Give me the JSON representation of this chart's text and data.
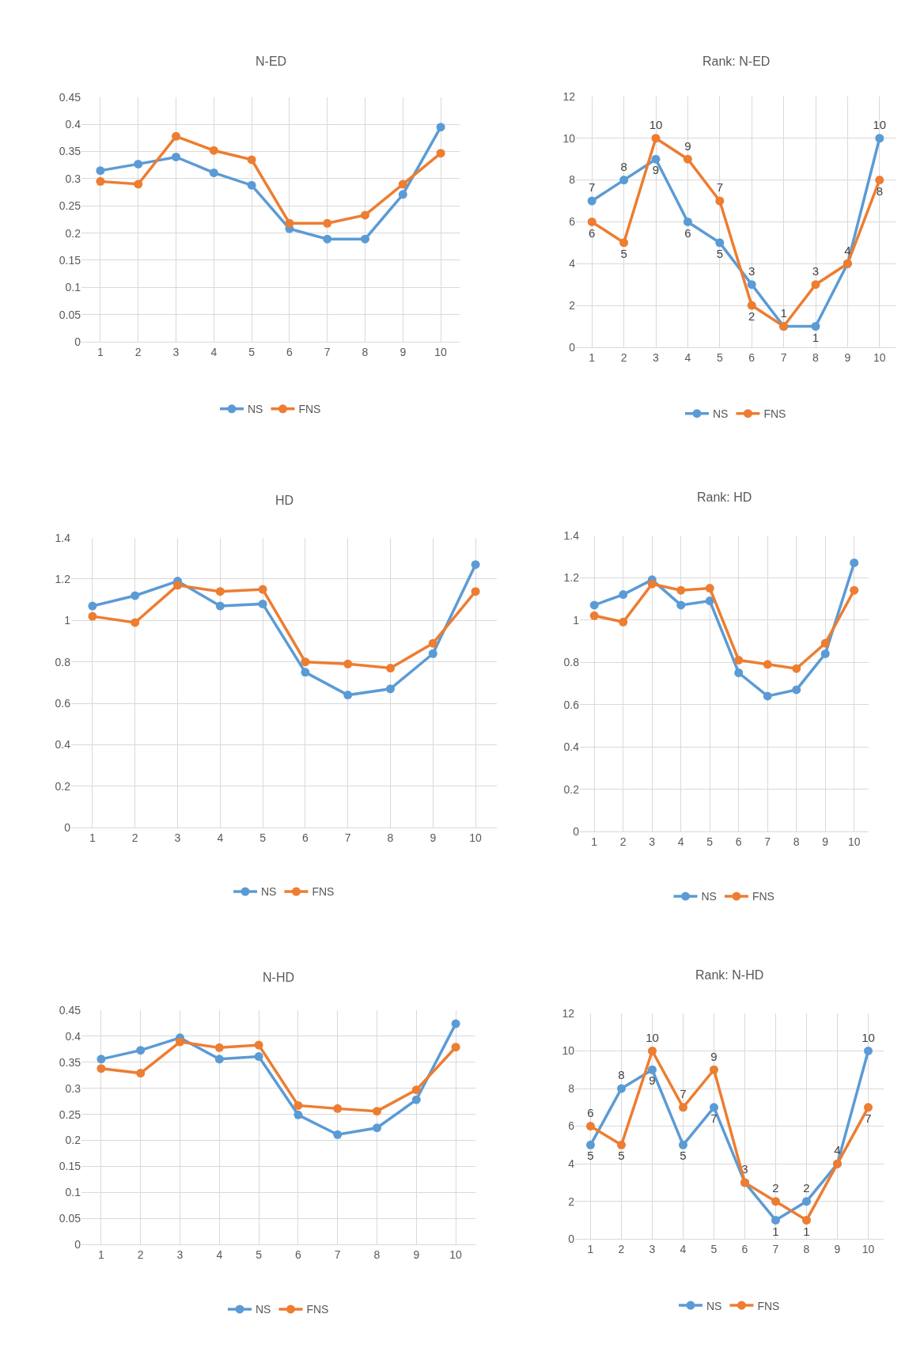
{
  "chart_data": [
    {
      "type": "line",
      "title": "N-ED",
      "categories": [
        "1",
        "2",
        "3",
        "4",
        "5",
        "6",
        "7",
        "8",
        "9",
        "10"
      ],
      "ylim": [
        0,
        0.45
      ],
      "yticks": [
        0,
        0.05,
        0.1,
        0.15,
        0.2,
        0.25,
        0.3,
        0.35,
        0.4,
        0.45
      ],
      "grid": true,
      "legend": "bottom",
      "marker": "circle",
      "series": [
        {
          "name": "NS",
          "color": "#5b9bd5",
          "values": [
            0.315,
            0.327,
            0.34,
            0.311,
            0.288,
            0.208,
            0.189,
            0.189,
            0.271,
            0.395
          ]
        },
        {
          "name": "FNS",
          "color": "#ed7d31",
          "values": [
            0.295,
            0.29,
            0.378,
            0.352,
            0.335,
            0.218,
            0.218,
            0.233,
            0.29,
            0.347
          ]
        }
      ]
    },
    {
      "type": "line",
      "title": "Rank: N-ED",
      "categories": [
        "1",
        "2",
        "3",
        "4",
        "5",
        "6",
        "7",
        "8",
        "9",
        "10"
      ],
      "ylim": [
        0,
        12
      ],
      "yticks": [
        0,
        2,
        4,
        6,
        8,
        10,
        12
      ],
      "grid": true,
      "legend": "bottom",
      "marker": "circle",
      "series": [
        {
          "name": "NS",
          "color": "#5b9bd5",
          "values": [
            7,
            8,
            9,
            6,
            5,
            3,
            1,
            1,
            4,
            10
          ],
          "value_labels": [
            "7",
            "8",
            "9",
            "6",
            "5",
            "3",
            "1",
            "1",
            "4",
            "10"
          ]
        },
        {
          "name": "FNS",
          "color": "#ed7d31",
          "values": [
            6,
            5,
            10,
            9,
            7,
            2,
            1,
            3,
            4,
            8
          ],
          "value_labels": [
            "6",
            "5",
            "10",
            "9",
            "7",
            "2",
            null,
            "3",
            null,
            "8"
          ]
        }
      ]
    },
    {
      "type": "line",
      "title": "HD",
      "categories": [
        "1",
        "2",
        "3",
        "4",
        "5",
        "6",
        "7",
        "8",
        "9",
        "10"
      ],
      "ylim": [
        0,
        1.4
      ],
      "yticks": [
        0,
        0.2,
        0.4,
        0.6,
        0.8,
        1,
        1.2,
        1.4
      ],
      "grid": true,
      "legend": "bottom",
      "marker": "circle",
      "series": [
        {
          "name": "NS",
          "color": "#5b9bd5",
          "values": [
            1.07,
            1.12,
            1.19,
            1.07,
            1.08,
            0.75,
            0.64,
            0.67,
            0.84,
            1.27
          ]
        },
        {
          "name": "FNS",
          "color": "#ed7d31",
          "values": [
            1.02,
            0.99,
            1.17,
            1.14,
            1.15,
            0.8,
            0.79,
            0.77,
            0.89,
            1.14
          ]
        }
      ]
    },
    {
      "type": "line",
      "title": "Rank: HD",
      "categories": [
        "1",
        "2",
        "3",
        "4",
        "5",
        "6",
        "7",
        "8",
        "9",
        "10"
      ],
      "ylim": [
        0,
        1.4
      ],
      "yticks": [
        0,
        0.2,
        0.4,
        0.6,
        0.8,
        1,
        1.2,
        1.4
      ],
      "grid": true,
      "legend": "bottom",
      "marker": "circle",
      "series": [
        {
          "name": "NS",
          "color": "#5b9bd5",
          "values": [
            1.07,
            1.12,
            1.19,
            1.07,
            1.09,
            0.75,
            0.64,
            0.67,
            0.84,
            1.27
          ]
        },
        {
          "name": "FNS",
          "color": "#ed7d31",
          "values": [
            1.02,
            0.99,
            1.17,
            1.14,
            1.15,
            0.81,
            0.79,
            0.77,
            0.89,
            1.14
          ]
        }
      ]
    },
    {
      "type": "line",
      "title": "N-HD",
      "categories": [
        "1",
        "2",
        "3",
        "4",
        "5",
        "6",
        "7",
        "8",
        "9",
        "10"
      ],
      "ylim": [
        0,
        0.45
      ],
      "yticks": [
        0,
        0.05,
        0.1,
        0.15,
        0.2,
        0.25,
        0.3,
        0.35,
        0.4,
        0.45
      ],
      "grid": true,
      "legend": "bottom",
      "marker": "circle",
      "series": [
        {
          "name": "NS",
          "color": "#5b9bd5",
          "values": [
            0.356,
            0.373,
            0.397,
            0.356,
            0.361,
            0.249,
            0.211,
            0.224,
            0.278,
            0.424
          ]
        },
        {
          "name": "FNS",
          "color": "#ed7d31",
          "values": [
            0.338,
            0.329,
            0.389,
            0.378,
            0.383,
            0.267,
            0.261,
            0.256,
            0.297,
            0.379
          ]
        }
      ]
    },
    {
      "type": "line",
      "title": "Rank: N-HD",
      "categories": [
        "1",
        "2",
        "3",
        "4",
        "5",
        "6",
        "7",
        "8",
        "9",
        "10"
      ],
      "ylim": [
        0,
        12
      ],
      "yticks": [
        0,
        2,
        4,
        6,
        8,
        10,
        12
      ],
      "grid": true,
      "legend": "bottom",
      "marker": "circle",
      "series": [
        {
          "name": "NS",
          "color": "#5b9bd5",
          "values": [
            5,
            8,
            9,
            5,
            7,
            3,
            1,
            2,
            4,
            10
          ],
          "value_labels": [
            "5",
            "8",
            "9",
            "5",
            "7",
            "3",
            "1",
            "2",
            "4",
            "10"
          ]
        },
        {
          "name": "FNS",
          "color": "#ed7d31",
          "values": [
            6,
            5,
            10,
            7,
            9,
            3,
            2,
            1,
            4,
            7
          ],
          "value_labels": [
            "6",
            "5",
            "10",
            "7",
            "9",
            null,
            "2",
            "1",
            null,
            "7"
          ]
        }
      ]
    }
  ]
}
